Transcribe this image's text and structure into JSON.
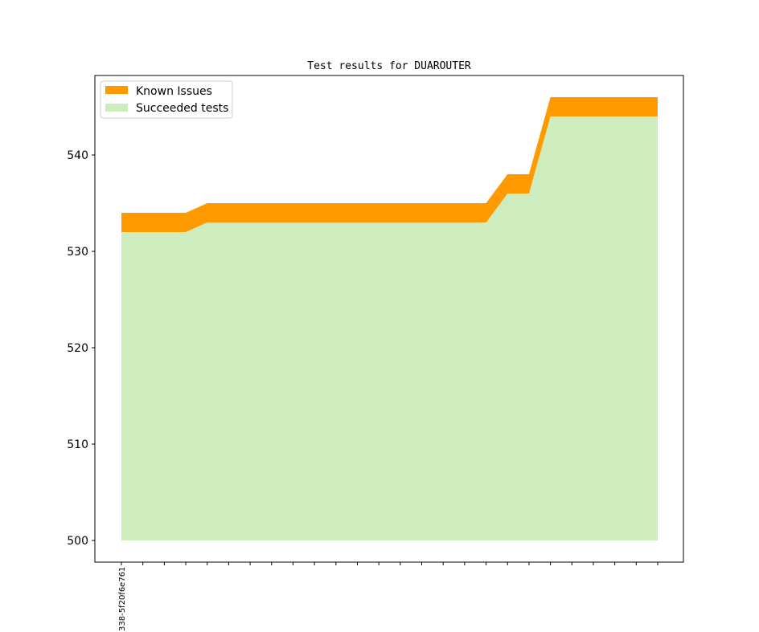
{
  "chart_data": {
    "type": "area",
    "title": "Test results for DUAROUTER",
    "xlabel": "",
    "ylabel": "",
    "ylim": [
      497.75,
      548.25
    ],
    "yticks": [
      500,
      510,
      520,
      530,
      540
    ],
    "x_count": 26,
    "xtick_labels": [
      "338-5f20f6e761"
    ],
    "legend_position": "top-left",
    "grid": false,
    "baseline": 500,
    "series": [
      {
        "name": "Known Issues",
        "color": "#ff9900",
        "values": [
          534,
          534,
          534,
          534,
          535,
          535,
          535,
          535,
          535,
          535,
          535,
          535,
          535,
          535,
          535,
          535,
          535,
          535,
          538,
          538,
          546,
          546,
          546,
          546,
          546,
          546
        ]
      },
      {
        "name": "Succeeded tests",
        "color": "#ceedbf",
        "values": [
          532,
          532,
          532,
          532,
          533,
          533,
          533,
          533,
          533,
          533,
          533,
          533,
          533,
          533,
          533,
          533,
          533,
          533,
          536,
          536,
          544,
          544,
          544,
          544,
          544,
          544
        ]
      }
    ]
  }
}
